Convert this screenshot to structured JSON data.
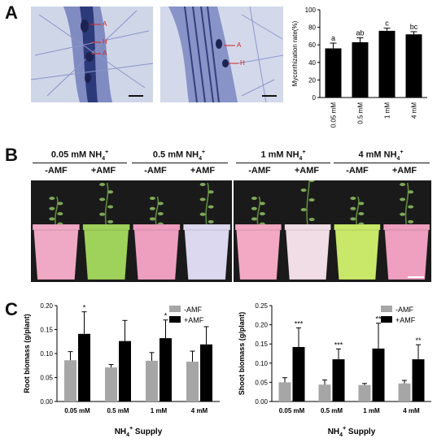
{
  "panels": {
    "a": "A",
    "b": "B",
    "c": "C"
  },
  "micrographs": {
    "left_labels": [
      "A",
      "H",
      "A"
    ],
    "right_labels": [
      "A",
      "H"
    ]
  },
  "panel_b": {
    "groups": [
      {
        "title": "0.05 mM NH",
        "ion": "4",
        "charge": "+"
      },
      {
        "title": "0.5 mM NH",
        "ion": "4",
        "charge": "+"
      },
      {
        "title": "1 mM NH",
        "ion": "4",
        "charge": "+"
      },
      {
        "title": "4 mM NH",
        "ion": "4",
        "charge": "+"
      }
    ],
    "treatments": [
      "-AMF",
      "+AMF",
      "-AMF",
      "+AMF",
      "-AMF",
      "+AMF",
      "-AMF",
      "+AMF"
    ],
    "pot_colors": [
      "#f0a9c4",
      "#9fd25b",
      "#ee9fbf",
      "#dcd8ef",
      "#f3a9c3",
      "#f1dde6",
      "#c9e86a",
      "#ef9fc0"
    ]
  },
  "colors": {
    "minus_amf": "#a6a6a6",
    "plus_amf": "#000000",
    "bar_mycor": "#000000"
  },
  "chart_data": [
    {
      "type": "bar",
      "panel": "A",
      "ylabel": "Mycorrhization rate(%)",
      "ylim": [
        0,
        100
      ],
      "yticks": [
        0,
        20,
        40,
        60,
        80,
        100
      ],
      "categories": [
        "0.05 mM",
        "0.5 mM",
        "1 mM",
        "4 mM"
      ],
      "values": [
        56,
        63,
        76,
        72
      ],
      "errors": [
        6,
        5,
        3,
        3
      ],
      "annotations": [
        "a",
        "ab",
        "c",
        "bc"
      ]
    },
    {
      "type": "bar",
      "panel": "C",
      "ylabel": "Root biomass (g/plant)",
      "xlabel": "NH4+ Supply",
      "ylim": [
        0,
        0.2
      ],
      "yticks": [
        "0.00",
        "0.05",
        "0.10",
        "0.15",
        "0.20"
      ],
      "categories": [
        "0.05 mM",
        "0.5 mM",
        "1 mM",
        "4 mM"
      ],
      "legend_position": "top-right",
      "series": [
        {
          "name": "-AMF",
          "values": [
            0.086,
            0.071,
            0.085,
            0.083
          ],
          "errors": [
            0.018,
            0.006,
            0.017,
            0.022
          ]
        },
        {
          "name": "+AMF",
          "values": [
            0.141,
            0.126,
            0.132,
            0.119
          ],
          "errors": [
            0.046,
            0.043,
            0.038,
            0.037
          ]
        }
      ],
      "annotations": [
        "*",
        "",
        "*",
        ""
      ]
    },
    {
      "type": "bar",
      "panel": "C",
      "ylabel": "Shoot biomass (g/plant)",
      "xlabel": "NH4+ Supply",
      "ylim": [
        0,
        0.25
      ],
      "yticks": [
        "0.00",
        "0.05",
        "0.10",
        "0.15",
        "0.20",
        "0.25"
      ],
      "categories": [
        "0.05 mM",
        "0.5 mM",
        "1 mM",
        "4 mM"
      ],
      "legend_position": "top-right",
      "series": [
        {
          "name": "-AMF",
          "values": [
            0.05,
            0.044,
            0.043,
            0.047
          ],
          "errors": [
            0.012,
            0.012,
            0.004,
            0.008
          ]
        },
        {
          "name": "+AMF",
          "values": [
            0.142,
            0.11,
            0.138,
            0.11
          ],
          "errors": [
            0.05,
            0.027,
            0.066,
            0.038
          ]
        }
      ],
      "annotations": [
        "***",
        "***",
        "**",
        "**"
      ]
    }
  ]
}
